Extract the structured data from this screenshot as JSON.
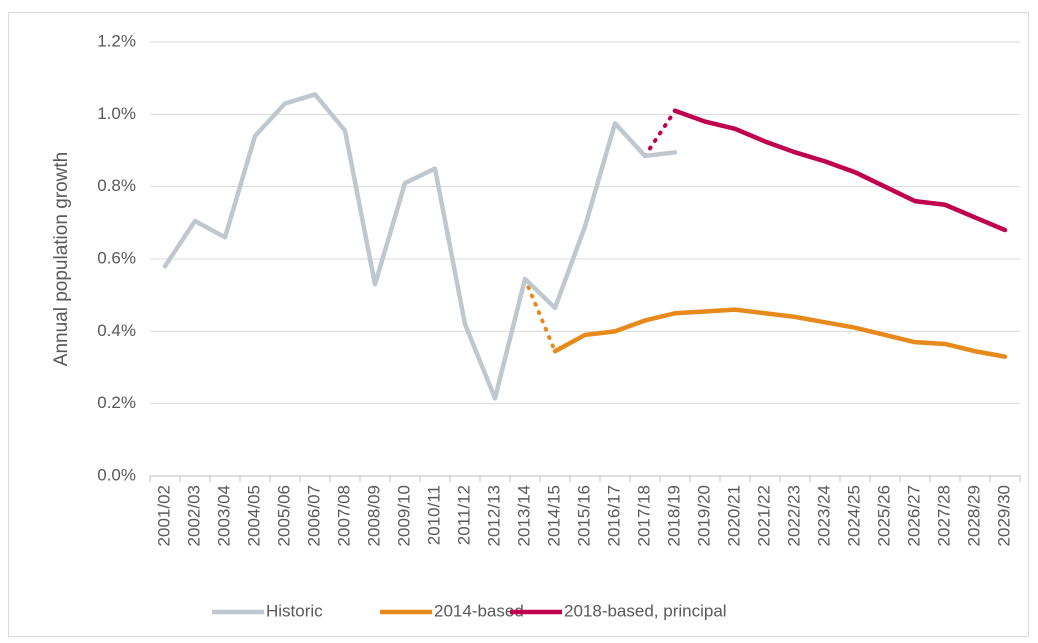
{
  "chart_data": {
    "type": "line",
    "y_label": "Annual population growth",
    "categories": [
      "2001/02",
      "2002/03",
      "2003/04",
      "2004/05",
      "2005/06",
      "2006/07",
      "2007/08",
      "2008/09",
      "2009/10",
      "2010/11",
      "2011/12",
      "2012/13",
      "2013/14",
      "2014/15",
      "2015/16",
      "2016/17",
      "2017/18",
      "2018/19",
      "2019/20",
      "2020/21",
      "2021/22",
      "2022/23",
      "2023/24",
      "2024/25",
      "2025/26",
      "2026/27",
      "2027/28",
      "2028/29",
      "2029/30"
    ],
    "series": [
      {
        "name": "Historic",
        "color": "#c0c8cf",
        "values": [
          0.58,
          0.705,
          0.66,
          0.94,
          1.03,
          1.055,
          0.955,
          0.53,
          0.81,
          0.85,
          0.42,
          0.215,
          0.545,
          0.465,
          0.69,
          0.975,
          0.885,
          0.895,
          null,
          null,
          null,
          null,
          null,
          null,
          null,
          null,
          null,
          null,
          null
        ]
      },
      {
        "name": "2014-based",
        "color": "#e8891c",
        "values": [
          null,
          null,
          null,
          null,
          null,
          null,
          null,
          null,
          null,
          null,
          null,
          null,
          null,
          0.345,
          0.39,
          0.4,
          0.43,
          0.45,
          0.455,
          0.46,
          0.45,
          0.44,
          0.425,
          0.41,
          0.39,
          0.37,
          0.365,
          0.345,
          0.33
        ]
      },
      {
        "name": "2018-based, principal",
        "color": "#c0004e",
        "values": [
          null,
          null,
          null,
          null,
          null,
          null,
          null,
          null,
          null,
          null,
          null,
          null,
          null,
          null,
          null,
          null,
          null,
          1.01,
          0.98,
          0.96,
          0.925,
          0.895,
          0.87,
          0.84,
          0.8,
          0.76,
          0.75,
          0.715,
          0.68
        ]
      }
    ],
    "ylim": [
      0,
      1.2
    ],
    "yticks": [
      {
        "value": 0,
        "label": "0.0%"
      },
      {
        "value": 0.2,
        "label": "0.2%"
      },
      {
        "value": 0.4,
        "label": "0.4%"
      },
      {
        "value": 0.6,
        "label": "0.6%"
      },
      {
        "value": 0.8,
        "label": "0.8%"
      },
      {
        "value": 1.0,
        "label": "1.0%"
      },
      {
        "value": 1.2,
        "label": "1.2%"
      }
    ],
    "grid": true,
    "legend": "bottom"
  }
}
